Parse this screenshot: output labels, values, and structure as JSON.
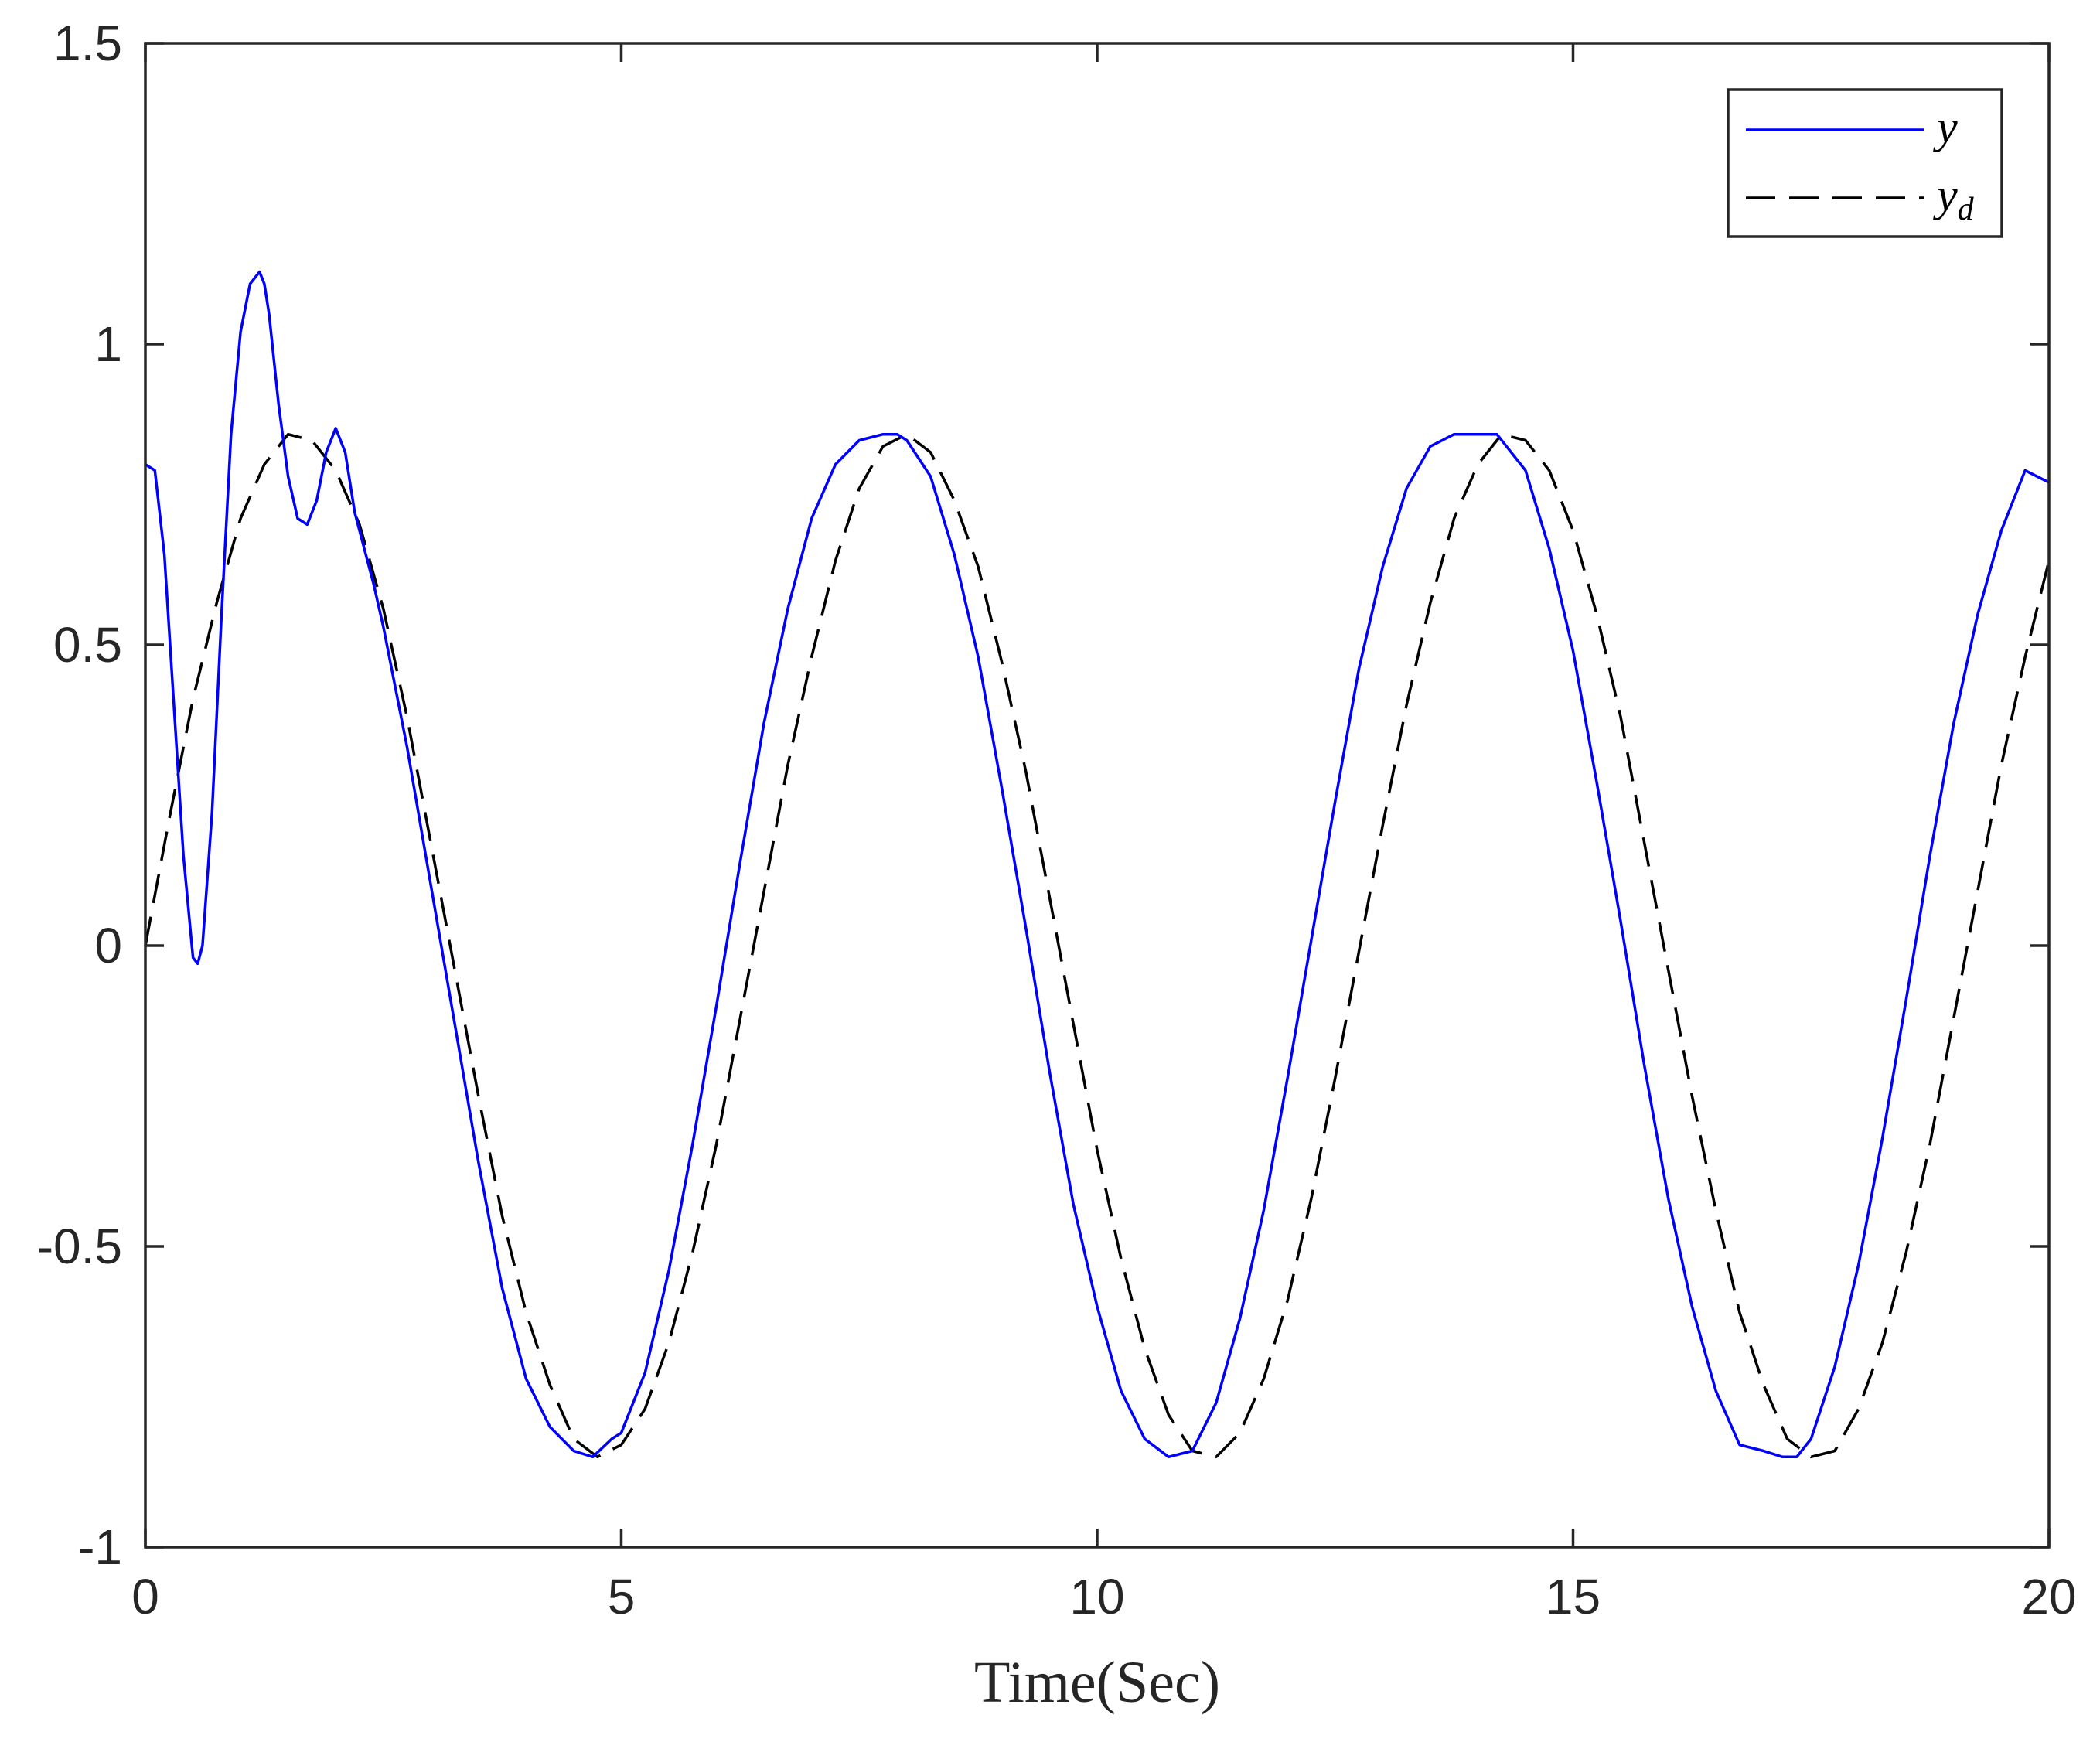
{
  "chart_data": {
    "type": "line",
    "xlabel": "Time(Sec)",
    "ylabel": "",
    "xlim": [
      0,
      20
    ],
    "ylim": [
      -1,
      1.5
    ],
    "x_ticks": [
      0,
      5,
      10,
      15,
      20
    ],
    "x_tick_labels": [
      "0",
      "5",
      "10",
      "15",
      "20"
    ],
    "y_ticks": [
      -1,
      -0.5,
      0,
      0.5,
      1,
      1.5
    ],
    "y_tick_labels": [
      "-1",
      "-0.5",
      "0",
      "0.5",
      "1",
      "1.5"
    ],
    "grid": false,
    "legend_position": "top-right",
    "series": [
      {
        "name": "y",
        "legend_main": "y",
        "legend_sub": "",
        "color": "#0000ff",
        "style": "solid",
        "x": [
          0,
          0.1,
          0.2,
          0.3,
          0.4,
          0.5,
          0.55,
          0.6,
          0.7,
          0.8,
          0.9,
          1.0,
          1.1,
          1.2,
          1.25,
          1.3,
          1.4,
          1.5,
          1.6,
          1.7,
          1.8,
          1.9,
          2.0,
          2.1,
          2.2,
          2.4,
          2.5,
          2.75,
          3.0,
          3.25,
          3.5,
          3.75,
          4.0,
          4.25,
          4.5,
          4.7,
          4.9,
          5.0,
          5.25,
          5.5,
          5.75,
          6.0,
          6.25,
          6.5,
          6.75,
          7.0,
          7.25,
          7.5,
          7.75,
          7.9,
          8.0,
          8.25,
          8.5,
          8.75,
          9.0,
          9.25,
          9.5,
          9.75,
          10.0,
          10.25,
          10.5,
          10.75,
          11.0,
          11.25,
          11.5,
          11.75,
          12.0,
          12.25,
          12.5,
          12.75,
          13.0,
          13.25,
          13.5,
          13.75,
          14.0,
          14.2,
          14.5,
          14.75,
          15.0,
          15.25,
          15.5,
          15.75,
          16.0,
          16.25,
          16.5,
          16.75,
          17.0,
          17.2,
          17.35,
          17.5,
          17.75,
          18.0,
          18.25,
          18.5,
          18.75,
          19.0,
          19.25,
          19.5,
          19.75,
          20.0
        ],
        "y": [
          0.8,
          0.79,
          0.65,
          0.4,
          0.15,
          -0.02,
          -0.03,
          0.0,
          0.22,
          0.55,
          0.85,
          1.02,
          1.1,
          1.12,
          1.1,
          1.05,
          0.9,
          0.78,
          0.71,
          0.7,
          0.74,
          0.82,
          0.86,
          0.82,
          0.72,
          0.6,
          0.53,
          0.33,
          0.1,
          -0.13,
          -0.36,
          -0.57,
          -0.72,
          -0.8,
          -0.84,
          -0.85,
          -0.82,
          -0.81,
          -0.71,
          -0.54,
          -0.33,
          -0.1,
          0.14,
          0.37,
          0.56,
          0.71,
          0.8,
          0.84,
          0.85,
          0.85,
          0.84,
          0.78,
          0.65,
          0.48,
          0.26,
          0.03,
          -0.21,
          -0.43,
          -0.6,
          -0.74,
          -0.82,
          -0.85,
          -0.84,
          -0.76,
          -0.62,
          -0.44,
          -0.22,
          0.01,
          0.24,
          0.46,
          0.63,
          0.76,
          0.83,
          0.85,
          0.85,
          0.85,
          0.79,
          0.66,
          0.49,
          0.27,
          0.04,
          -0.2,
          -0.42,
          -0.6,
          -0.74,
          -0.83,
          -0.84,
          -0.85,
          -0.85,
          -0.82,
          -0.7,
          -0.53,
          -0.32,
          -0.09,
          0.15,
          0.37,
          0.55,
          0.69,
          0.79,
          0.77
        ]
      },
      {
        "name": "y_d",
        "legend_main": "y",
        "legend_sub": "d",
        "color": "#000000",
        "style": "dashed",
        "x": [
          0,
          0.25,
          0.5,
          0.75,
          1.0,
          1.25,
          1.5,
          1.75,
          2.0,
          2.25,
          2.5,
          2.75,
          3.0,
          3.25,
          3.5,
          3.75,
          4.0,
          4.25,
          4.5,
          4.75,
          5.0,
          5.25,
          5.5,
          5.75,
          6.0,
          6.25,
          6.5,
          6.75,
          7.0,
          7.25,
          7.5,
          7.75,
          8.0,
          8.25,
          8.5,
          8.75,
          9.0,
          9.25,
          9.5,
          9.75,
          10.0,
          10.25,
          10.5,
          10.75,
          11.0,
          11.25,
          11.5,
          11.75,
          12.0,
          12.25,
          12.5,
          12.75,
          13.0,
          13.25,
          13.5,
          13.75,
          14.0,
          14.25,
          14.5,
          14.75,
          15.0,
          15.25,
          15.5,
          15.75,
          16.0,
          16.25,
          16.5,
          16.75,
          17.0,
          17.25,
          17.5,
          17.75,
          18.0,
          18.25,
          18.5,
          18.75,
          19.0,
          19.25,
          19.5,
          19.75,
          20.0
        ],
        "y": [
          0.0,
          0.21,
          0.41,
          0.57,
          0.71,
          0.8,
          0.85,
          0.84,
          0.79,
          0.7,
          0.56,
          0.38,
          0.17,
          -0.04,
          -0.25,
          -0.45,
          -0.61,
          -0.73,
          -0.82,
          -0.85,
          -0.83,
          -0.77,
          -0.66,
          -0.51,
          -0.33,
          -0.12,
          0.09,
          0.3,
          0.48,
          0.64,
          0.76,
          0.83,
          0.85,
          0.82,
          0.74,
          0.63,
          0.47,
          0.29,
          0.08,
          -0.13,
          -0.34,
          -0.52,
          -0.67,
          -0.78,
          -0.84,
          -0.85,
          -0.81,
          -0.72,
          -0.59,
          -0.42,
          -0.22,
          -0.01,
          0.2,
          0.4,
          0.57,
          0.71,
          0.8,
          0.85,
          0.84,
          0.79,
          0.69,
          0.55,
          0.38,
          0.17,
          -0.04,
          -0.25,
          -0.44,
          -0.61,
          -0.73,
          -0.82,
          -0.85,
          -0.84,
          -0.77,
          -0.66,
          -0.51,
          -0.33,
          -0.12,
          0.09,
          0.3,
          0.48,
          0.64
        ]
      }
    ]
  }
}
